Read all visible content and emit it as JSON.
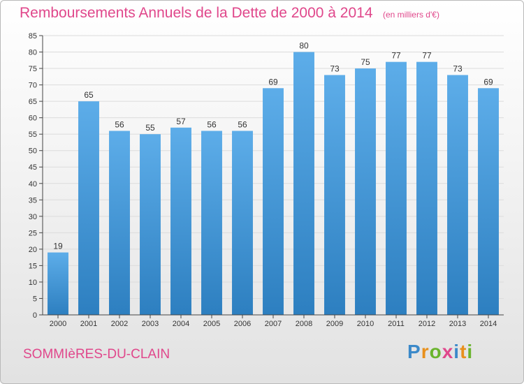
{
  "chart_data": {
    "type": "bar",
    "title": "Remboursements Annuels de la Dette de 2000 à 2014",
    "unit_label": "(en milliers d'€)",
    "categories": [
      "2000",
      "2001",
      "2002",
      "2003",
      "2004",
      "2005",
      "2006",
      "2007",
      "2008",
      "2009",
      "2010",
      "2011",
      "2012",
      "2013",
      "2014"
    ],
    "values": [
      19,
      65,
      56,
      55,
      57,
      56,
      56,
      69,
      80,
      73,
      75,
      77,
      77,
      73,
      69
    ],
    "ylim": [
      0,
      85
    ],
    "yticks": [
      0,
      5,
      10,
      15,
      20,
      25,
      30,
      35,
      40,
      45,
      50,
      55,
      60,
      65,
      70,
      75,
      80,
      85
    ],
    "grid": true,
    "bar_color_top": "#5dade9",
    "bar_color_bottom": "#2d7fc0",
    "grid_color": "#dcdcdc"
  },
  "footer": {
    "city": "SOMMIèRES-DU-CLAIN",
    "logo_letters": [
      "P",
      "r",
      "o",
      "x",
      "i",
      "t",
      "i"
    ],
    "logo_colors": [
      "#3b89c9",
      "#e8901c",
      "#6ab42d",
      "#e0478b",
      "#3b89c9",
      "#e8901c",
      "#6ab42d"
    ]
  },
  "colors": {
    "title": "#e0478b",
    "axis": "#444444"
  }
}
